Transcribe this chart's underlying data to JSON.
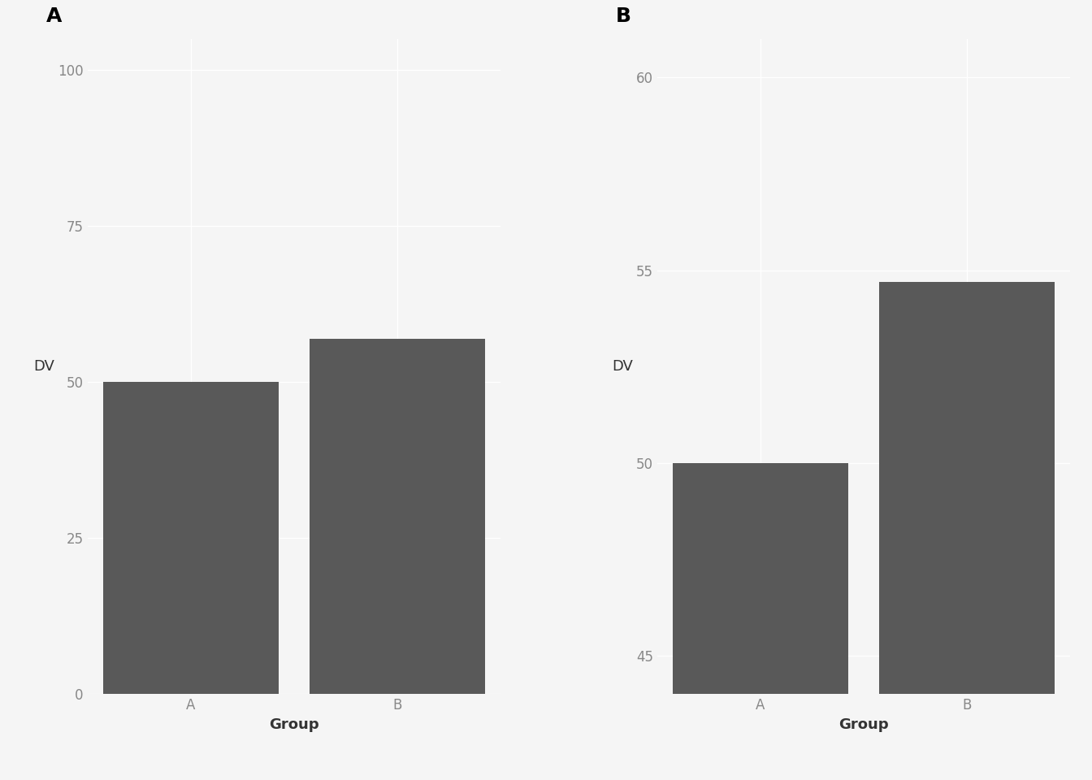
{
  "panel_A": {
    "label": "A",
    "categories": [
      "A",
      "B"
    ],
    "values": [
      50,
      57
    ],
    "ylim": [
      0,
      105
    ],
    "yticks": [
      0,
      25,
      50,
      75,
      100
    ],
    "ylabel": "DV",
    "xlabel": "Group",
    "bar_color": "#595959",
    "bar_width": 0.85
  },
  "panel_B": {
    "label": "B",
    "categories": [
      "A",
      "B"
    ],
    "values": [
      50,
      54.7
    ],
    "ylim": [
      44,
      61
    ],
    "yticks": [
      45,
      50,
      55,
      60
    ],
    "ylabel": "DV",
    "xlabel": "Group",
    "bar_color": "#595959",
    "bar_width": 0.85
  },
  "background_color": "#f5f5f5",
  "grid_color": "#ffffff",
  "tick_label_color": "#888888",
  "axis_label_color": "#333333",
  "panel_label_color": "#000000",
  "panel_label_fontsize": 18,
  "axis_label_fontsize": 13,
  "tick_label_fontsize": 12
}
